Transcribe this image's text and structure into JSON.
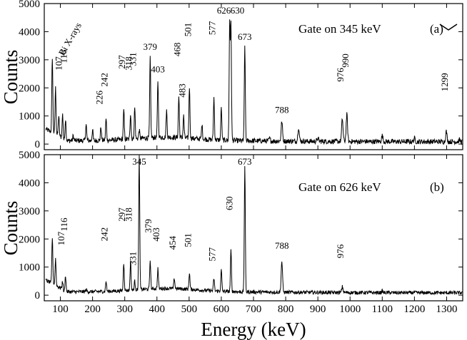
{
  "chart_data": [
    {
      "type": "line",
      "panel_label": "(a)",
      "gate_label": "Gate on 345 keV",
      "ylabel": "Counts",
      "xlim": [
        50,
        1350
      ],
      "ylim": [
        -200,
        5000
      ],
      "y_ticks": [
        "0",
        "1000",
        "2000",
        "3000",
        "4000",
        "5000"
      ],
      "x": [
        60,
        75,
        85,
        95,
        107,
        116,
        140,
        180,
        200,
        226,
        242,
        297,
        318,
        331,
        345,
        379,
        403,
        430,
        468,
        483,
        501,
        540,
        577,
        600,
        626,
        630,
        673,
        750,
        788,
        840,
        900,
        976,
        990,
        1100,
        1200,
        1299,
        1340
      ],
      "y": [
        100,
        3100,
        2000,
        1000,
        1050,
        900,
        300,
        700,
        500,
        600,
        900,
        1200,
        1100,
        1300,
        500,
        3050,
        2250,
        1200,
        1700,
        1000,
        2050,
        700,
        1650,
        1300,
        4300,
        4200,
        3500,
        200,
        800,
        600,
        200,
        900,
        1050,
        300,
        200,
        450,
        150
      ],
      "peak_labels": [
        "107",
        "116",
        "226",
        "242",
        "297",
        "318",
        "331",
        "379",
        "403",
        "468",
        "483",
        "501",
        "577",
        "626",
        "630",
        "673",
        "788",
        "976",
        "990",
        "1299"
      ],
      "annotation": "Bi X-rays"
    },
    {
      "type": "line",
      "panel_label": "(b)",
      "gate_label": "Gate on 626 keV",
      "ylabel": "Counts",
      "xlabel": "Energy (keV)",
      "xlim": [
        50,
        1350
      ],
      "ylim": [
        -200,
        5000
      ],
      "x_ticks": [
        "100",
        "200",
        "300",
        "400",
        "500",
        "600",
        "700",
        "800",
        "900",
        "1000",
        "1100",
        "1200",
        "1300"
      ],
      "y_ticks": [
        "0",
        "1000",
        "2000",
        "3000",
        "4000",
        "5000"
      ],
      "x": [
        60,
        75,
        85,
        107,
        116,
        180,
        242,
        297,
        318,
        331,
        345,
        379,
        403,
        454,
        501,
        577,
        600,
        630,
        673,
        788,
        976,
        1100,
        1200,
        1340
      ],
      "y": [
        100,
        2050,
        1300,
        500,
        700,
        200,
        500,
        1150,
        1200,
        500,
        4950,
        1250,
        950,
        600,
        800,
        600,
        900,
        1600,
        4600,
        1200,
        300,
        150,
        100,
        80
      ],
      "peak_labels": [
        "107",
        "116",
        "242",
        "297",
        "318",
        "331",
        "345",
        "379",
        "403",
        "454",
        "501",
        "577",
        "630",
        "673",
        "788",
        "976"
      ]
    }
  ]
}
